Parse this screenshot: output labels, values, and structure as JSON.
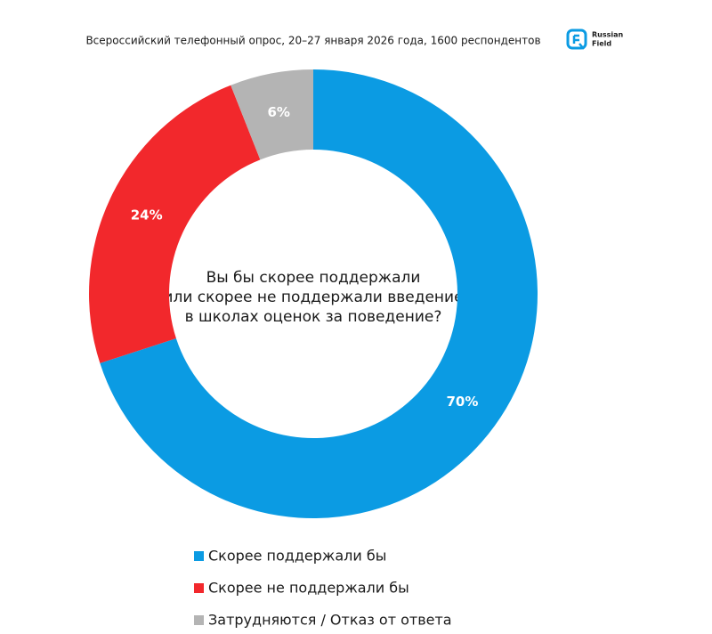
{
  "chart_data": {
    "type": "donut",
    "title": "Всероссийский телефонный опрос, 20–27 января 2026 года, 1600 респондентов",
    "center_text": [
      "Вы бы скорее поддержали",
      "или скорее не поддержали введение",
      "в школах оценок за поведение?"
    ],
    "categories": [
      "Скорее поддержали бы",
      "Скорее не поддержали бы",
      "Затрудняются / Отказ от ответа"
    ],
    "values": [
      70,
      24,
      6
    ],
    "value_labels": [
      "70%",
      "24%",
      "6%"
    ],
    "colors": [
      "#0b9be3",
      "#f2282c",
      "#b4b4b4"
    ]
  },
  "logo": [
    "Russian",
    "Field"
  ]
}
